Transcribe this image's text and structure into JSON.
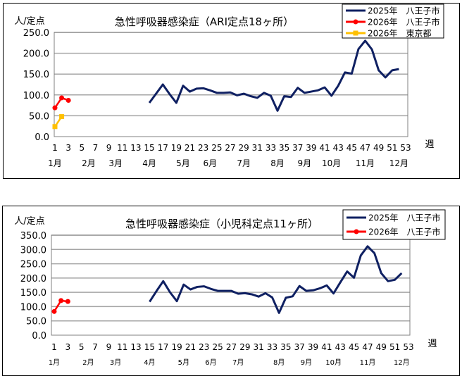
{
  "chart_data": [
    {
      "type": "line",
      "title": "急性呼吸器感染症（ARI定点18ヶ所）",
      "ylabel": "人/定点",
      "xlabel": "週",
      "ylim": [
        0,
        250
      ],
      "yticks": [
        "0.0",
        "50.0",
        "100.0",
        "150.0",
        "200.0",
        "250.0"
      ],
      "xticks": [
        "1",
        "3",
        "5",
        "7",
        "9",
        "11",
        "13",
        "15",
        "17",
        "19",
        "21",
        "23",
        "25",
        "27",
        "29",
        "31",
        "33",
        "35",
        "37",
        "39",
        "41",
        "43",
        "45",
        "47",
        "49",
        "51",
        "53"
      ],
      "month_labels": [
        {
          "label": "1月",
          "week": 1
        },
        {
          "label": "2月",
          "week": 6
        },
        {
          "label": "3月",
          "week": 10
        },
        {
          "label": "4月",
          "week": 15
        },
        {
          "label": "5月",
          "week": 20
        },
        {
          "label": "6月",
          "week": 24
        },
        {
          "label": "7月",
          "week": 29
        },
        {
          "label": "8月",
          "week": 34
        },
        {
          "label": "9月",
          "week": 38
        },
        {
          "label": "10月",
          "week": 42
        },
        {
          "label": "11月",
          "week": 47
        },
        {
          "label": "12月",
          "week": 52
        }
      ],
      "grid": true,
      "legend": "top-right",
      "series": [
        {
          "name": "2025年　八王子市",
          "color": "#0f2062",
          "marker": "none",
          "start_week": 15,
          "values": [
            81,
            103,
            125,
            102,
            81,
            122,
            108,
            115,
            116,
            111,
            105,
            105,
            106,
            99,
            103,
            97,
            93,
            105,
            98,
            62,
            97,
            95,
            117,
            105,
            108,
            111,
            118,
            98,
            122,
            154,
            151,
            210,
            230,
            209,
            159,
            142,
            159,
            162
          ]
        },
        {
          "name": "2026年　八王子市",
          "color": "#ff0000",
          "marker": "circle",
          "start_week": 1,
          "values": [
            69,
            93,
            87
          ]
        },
        {
          "name": "2026年　東京都",
          "color": "#ffc000",
          "marker": "square",
          "start_week": 1,
          "values": [
            24,
            48
          ]
        }
      ]
    },
    {
      "type": "line",
      "title": "急性呼吸器感染症（小児科定点11ヶ所）",
      "ylabel": "人/定点",
      "xlabel": "週",
      "ylim": [
        0,
        350
      ],
      "yticks": [
        "0.0",
        "50.0",
        "100.0",
        "150.0",
        "200.0",
        "250.0",
        "300.0",
        "350.0"
      ],
      "xticks": [
        "1",
        "3",
        "5",
        "7",
        "9",
        "11",
        "13",
        "15",
        "17",
        "19",
        "21",
        "23",
        "25",
        "27",
        "29",
        "31",
        "33",
        "35",
        "37",
        "39",
        "41",
        "43",
        "45",
        "47",
        "49",
        "51",
        "53"
      ],
      "month_labels": [
        {
          "label": "1月",
          "week": 1
        },
        {
          "label": "2月",
          "week": 6
        },
        {
          "label": "3月",
          "week": 10
        },
        {
          "label": "4月",
          "week": 15
        },
        {
          "label": "5月",
          "week": 20
        },
        {
          "label": "6月",
          "week": 24
        },
        {
          "label": "7月",
          "week": 28
        },
        {
          "label": "8月",
          "week": 34
        },
        {
          "label": "9月",
          "week": 38
        },
        {
          "label": "10月",
          "week": 42
        },
        {
          "label": "11月",
          "week": 47
        },
        {
          "label": "12月",
          "week": 52
        }
      ],
      "grid": true,
      "legend": "top-right",
      "series": [
        {
          "name": "2025年　八王子市",
          "color": "#0f2062",
          "marker": "none",
          "start_week": 15,
          "values": [
            117,
            154,
            189,
            150,
            119,
            177,
            160,
            169,
            171,
            162,
            155,
            155,
            155,
            145,
            147,
            143,
            135,
            147,
            132,
            78,
            131,
            136,
            172,
            155,
            157,
            164,
            174,
            146,
            185,
            223,
            201,
            279,
            311,
            287,
            217,
            189,
            194,
            217
          ]
        },
        {
          "name": "2026年　八王子市",
          "color": "#ff0000",
          "marker": "circle",
          "start_week": 1,
          "values": [
            83,
            121,
            118
          ]
        }
      ]
    }
  ]
}
